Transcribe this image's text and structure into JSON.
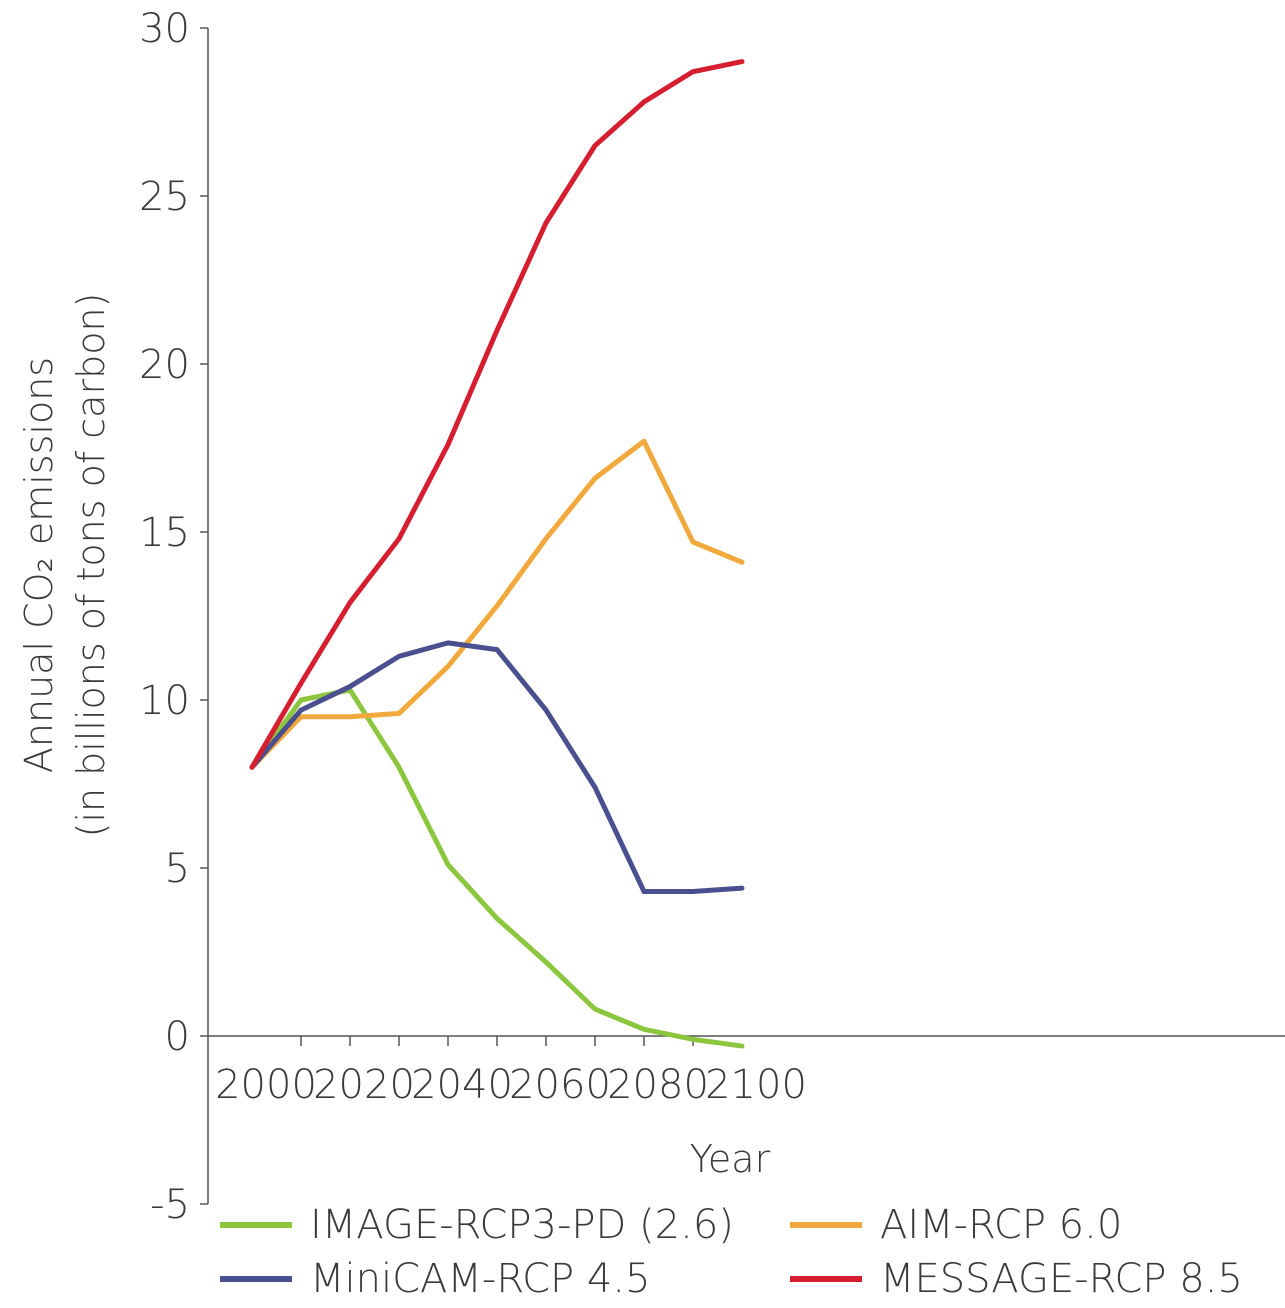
{
  "chart_data": {
    "type": "line",
    "xlabel": "Year",
    "ylabel_line1": "Annual CO₂ emissions",
    "ylabel_line2": "(in billions of tons of carbon)",
    "xlim": [
      1995,
      2100
    ],
    "ylim": [
      -5,
      30
    ],
    "xticks": [
      2000,
      2020,
      2040,
      2060,
      2080,
      2100
    ],
    "yticks": [
      -5,
      0,
      5,
      10,
      15,
      20,
      25,
      30
    ],
    "grid": false,
    "legend_position": "bottom",
    "series": [
      {
        "name": "IMAGE-RCP3-PD (2.6)",
        "color": "#8cc63f",
        "x": [
          2000,
          2010,
          2020,
          2030,
          2040,
          2050,
          2060,
          2070,
          2080,
          2090,
          2100
        ],
        "y": [
          8.0,
          10.0,
          10.3,
          8.0,
          5.1,
          3.5,
          2.2,
          0.8,
          0.2,
          -0.1,
          -0.3
        ]
      },
      {
        "name": "AIM-RCP 6.0",
        "color": "#f1a83c",
        "x": [
          2000,
          2010,
          2020,
          2030,
          2040,
          2050,
          2060,
          2070,
          2080,
          2090,
          2100
        ],
        "y": [
          8.0,
          9.5,
          9.5,
          9.6,
          11.0,
          12.8,
          14.8,
          16.6,
          17.7,
          14.7,
          14.1
        ]
      },
      {
        "name": "MiniCAM-RCP 4.5",
        "color": "#4a4f8f",
        "x": [
          2000,
          2010,
          2020,
          2030,
          2040,
          2050,
          2060,
          2070,
          2080,
          2090,
          2100
        ],
        "y": [
          8.0,
          9.7,
          10.4,
          11.3,
          11.7,
          11.5,
          9.7,
          7.4,
          4.3,
          4.3,
          4.4
        ]
      },
      {
        "name": "MESSAGE-RCP 8.5",
        "color": "#d51f30",
        "x": [
          2000,
          2010,
          2020,
          2030,
          2040,
          2050,
          2060,
          2070,
          2080,
          2090,
          2100
        ],
        "y": [
          8.0,
          10.5,
          12.9,
          14.8,
          17.6,
          21.0,
          24.2,
          26.5,
          27.8,
          28.7,
          29.0
        ]
      }
    ]
  }
}
